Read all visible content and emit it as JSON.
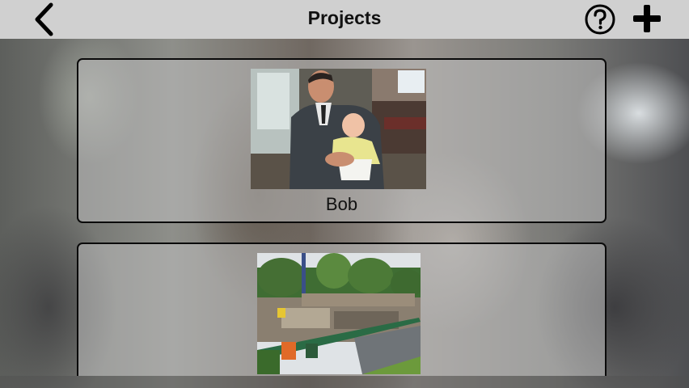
{
  "header": {
    "title": "Projects",
    "back_icon": "chevron-left-icon",
    "help_icon": "question-circle-icon",
    "add_icon": "plus-icon"
  },
  "projects": [
    {
      "label": "Bob",
      "thumbnail": "photo-man-holding-baby"
    },
    {
      "label": "",
      "thumbnail": "photo-construction-site"
    }
  ]
}
